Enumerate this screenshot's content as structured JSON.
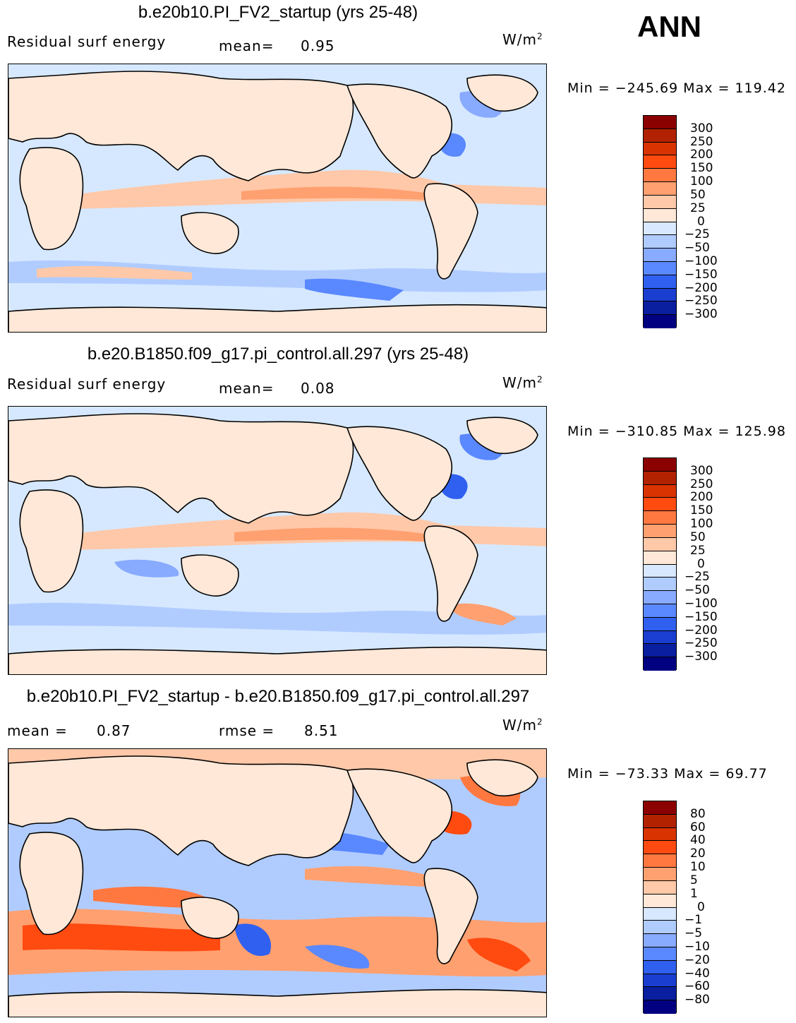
{
  "season": "ANN",
  "panels": [
    {
      "title": "b.e20b10.PI_FV2_startup (yrs 25-48)",
      "variable": "Residual surf energy",
      "stat_label": "mean=",
      "stat_value": "0.95",
      "units": "W/m",
      "units_sup": "2",
      "min_label": "Min",
      "min_value": "−245.69",
      "max_label": "Max",
      "max_value": "119.42",
      "levels": [
        "300",
        "250",
        "200",
        "150",
        "100",
        "50",
        "25",
        "0",
        "−25",
        "−50",
        "−100",
        "−150",
        "−200",
        "−250",
        "−300"
      ]
    },
    {
      "title": "b.e20.B1850.f09_g17.pi_control.all.297 (yrs 25-48)",
      "variable": "Residual surf energy",
      "stat_label": "mean=",
      "stat_value": "0.08",
      "units": "W/m",
      "units_sup": "2",
      "min_label": "Min",
      "min_value": "−310.85",
      "max_label": "Max",
      "max_value": "125.98",
      "levels": [
        "300",
        "250",
        "200",
        "150",
        "100",
        "50",
        "25",
        "0",
        "−25",
        "−50",
        "−100",
        "−150",
        "−200",
        "−250",
        "−300"
      ]
    },
    {
      "title": "b.e20b10.PI_FV2_startup - b.e20.B1850.f09_g17.pi_control.all.297",
      "stat_label": "mean =",
      "stat_value": "0.87",
      "rmse_label": "rmse =",
      "rmse_value": "8.51",
      "units": "W/m",
      "units_sup": "2",
      "min_label": "Min",
      "min_value": "−73.33",
      "max_label": "Max",
      "max_value": "69.77",
      "levels": [
        "80",
        "60",
        "40",
        "20",
        "10",
        "5",
        "1",
        "0",
        "−1",
        "−5",
        "−10",
        "−20",
        "−40",
        "−60",
        "−80"
      ]
    }
  ],
  "chart_data": [
    {
      "type": "heatmap",
      "title": "b.e20b10.PI_FV2_startup (yrs 25-48)",
      "variable": "Residual surf energy",
      "units": "W/m2",
      "mean": 0.95,
      "min": -245.69,
      "max": 119.42,
      "contour_levels": [
        -300,
        -250,
        -200,
        -150,
        -100,
        -50,
        -25,
        0,
        25,
        50,
        100,
        150,
        200,
        250,
        300
      ]
    },
    {
      "type": "heatmap",
      "title": "b.e20.B1850.f09_g17.pi_control.all.297 (yrs 25-48)",
      "variable": "Residual surf energy",
      "units": "W/m2",
      "mean": 0.08,
      "min": -310.85,
      "max": 125.98,
      "contour_levels": [
        -300,
        -250,
        -200,
        -150,
        -100,
        -50,
        -25,
        0,
        25,
        50,
        100,
        150,
        200,
        250,
        300
      ]
    },
    {
      "type": "heatmap",
      "title": "b.e20b10.PI_FV2_startup - b.e20.B1850.f09_g17.pi_control.all.297",
      "units": "W/m2",
      "mean": 0.87,
      "rmse": 8.51,
      "min": -73.33,
      "max": 69.77,
      "contour_levels": [
        -80,
        -60,
        -40,
        -20,
        -10,
        -5,
        -1,
        0,
        1,
        5,
        10,
        20,
        40,
        60,
        80
      ]
    }
  ],
  "colors": {
    "scale": [
      "#8b0000",
      "#b22200",
      "#d83300",
      "#ff4a10",
      "#ff7840",
      "#ffa070",
      "#ffc8a8",
      "#ffe8d8",
      "#d8e8ff",
      "#b0ccff",
      "#88aaff",
      "#5a88ff",
      "#2f60f0",
      "#1a3ed0",
      "#0a1ea0",
      "#000080"
    ],
    "land": "#ffe8d8",
    "ocean": "#d6e8ff"
  }
}
